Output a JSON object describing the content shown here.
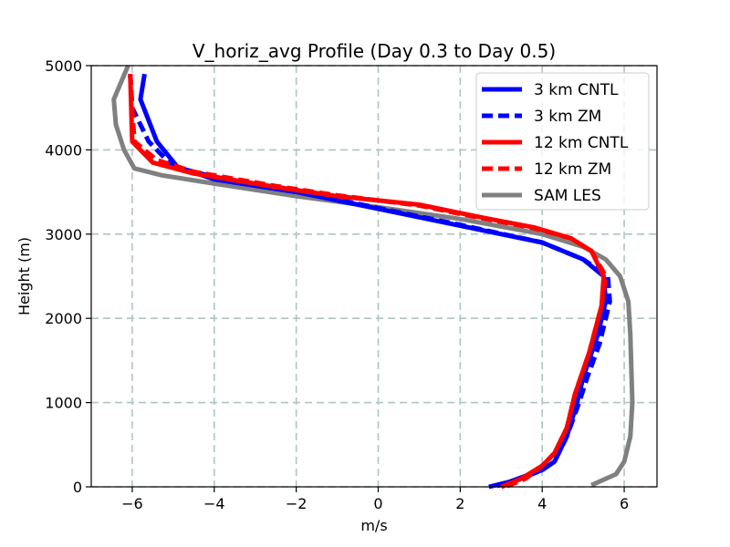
{
  "chart_data": {
    "type": "line",
    "title": "V_horiz_avg Profile (Day 0.3 to Day 0.5)",
    "xlabel": "m/s",
    "ylabel": "Height (m)",
    "xlim": [
      -7,
      6.8
    ],
    "ylim": [
      0,
      5000
    ],
    "xticks": [
      -6,
      -4,
      -2,
      0,
      2,
      4,
      6
    ],
    "xtick_labels": [
      "−6",
      "−4",
      "−2",
      "0",
      "2",
      "4",
      "6"
    ],
    "yticks": [
      0,
      1000,
      2000,
      3000,
      4000,
      5000
    ],
    "ytick_labels": [
      "0",
      "1000",
      "2000",
      "3000",
      "4000",
      "5000"
    ],
    "grid": true,
    "legend_position": "top-right",
    "series": [
      {
        "name": "3 km CNTL",
        "color": "#0000ff",
        "dash": "solid",
        "x": [
          -5.7,
          -5.8,
          -5.4,
          -4.9,
          -4.0,
          -2.0,
          0.0,
          2.0,
          4.0,
          5.0,
          5.5,
          5.55,
          5.35,
          5.0,
          4.85,
          4.6,
          4.3,
          4.0,
          3.2,
          2.7
        ],
        "y": [
          4900,
          4600,
          4100,
          3800,
          3650,
          3500,
          3300,
          3100,
          2900,
          2700,
          2500,
          2200,
          1800,
          1300,
          1000,
          600,
          300,
          200,
          60,
          0
        ]
      },
      {
        "name": "3 km ZM",
        "color": "#0000ff",
        "dash": "dashed",
        "x": [
          -6.05,
          -6.0,
          -5.6,
          -5.0,
          -4.0,
          -2.0,
          0.0,
          2.0,
          4.0,
          5.0,
          5.6,
          5.65,
          5.4,
          5.1,
          4.9,
          4.6,
          4.3,
          4.0,
          3.3,
          2.8
        ],
        "y": [
          4900,
          4500,
          4100,
          3800,
          3680,
          3510,
          3310,
          3110,
          2900,
          2700,
          2500,
          2200,
          1700,
          1300,
          1000,
          600,
          300,
          200,
          60,
          0
        ]
      },
      {
        "name": "12 km CNTL",
        "color": "#ff0000",
        "dash": "solid",
        "x": [
          -6.05,
          -6.0,
          -5.5,
          -4.5,
          -2.5,
          -1.0,
          1.0,
          2.5,
          3.8,
          4.7,
          5.2,
          5.5,
          5.45,
          5.15,
          4.8,
          4.6,
          4.3,
          4.0,
          3.5,
          3.0
        ],
        "y": [
          4900,
          4100,
          3850,
          3720,
          3560,
          3450,
          3350,
          3200,
          3080,
          2950,
          2800,
          2500,
          2150,
          1600,
          1100,
          700,
          400,
          250,
          100,
          0
        ]
      },
      {
        "name": "12 km ZM",
        "color": "#ff0000",
        "dash": "dashed",
        "x": [
          -6.05,
          -5.95,
          -5.4,
          -4.5,
          -2.5,
          -1.0,
          1.0,
          2.5,
          3.8,
          4.7,
          5.2,
          5.55,
          5.45,
          5.15,
          4.8,
          4.6,
          4.3,
          4.0,
          3.6,
          3.1
        ],
        "y": [
          4900,
          4100,
          3880,
          3740,
          3570,
          3460,
          3340,
          3190,
          3070,
          2950,
          2800,
          2500,
          2150,
          1600,
          1100,
          700,
          400,
          250,
          100,
          0
        ]
      },
      {
        "name": "SAM LES",
        "color": "#808080",
        "dash": "solid",
        "x": [
          -6.1,
          -6.45,
          -6.4,
          -6.2,
          -5.95,
          -5.3,
          -4.0,
          -2.0,
          0.0,
          2.0,
          4.0,
          5.0,
          5.55,
          5.9,
          6.1,
          6.15,
          6.2,
          6.15,
          6.0,
          5.8,
          5.2
        ],
        "y": [
          5000,
          4600,
          4300,
          4000,
          3780,
          3700,
          3600,
          3450,
          3320,
          3180,
          3000,
          2850,
          2700,
          2500,
          2200,
          1800,
          1000,
          600,
          300,
          150,
          20
        ]
      }
    ]
  }
}
